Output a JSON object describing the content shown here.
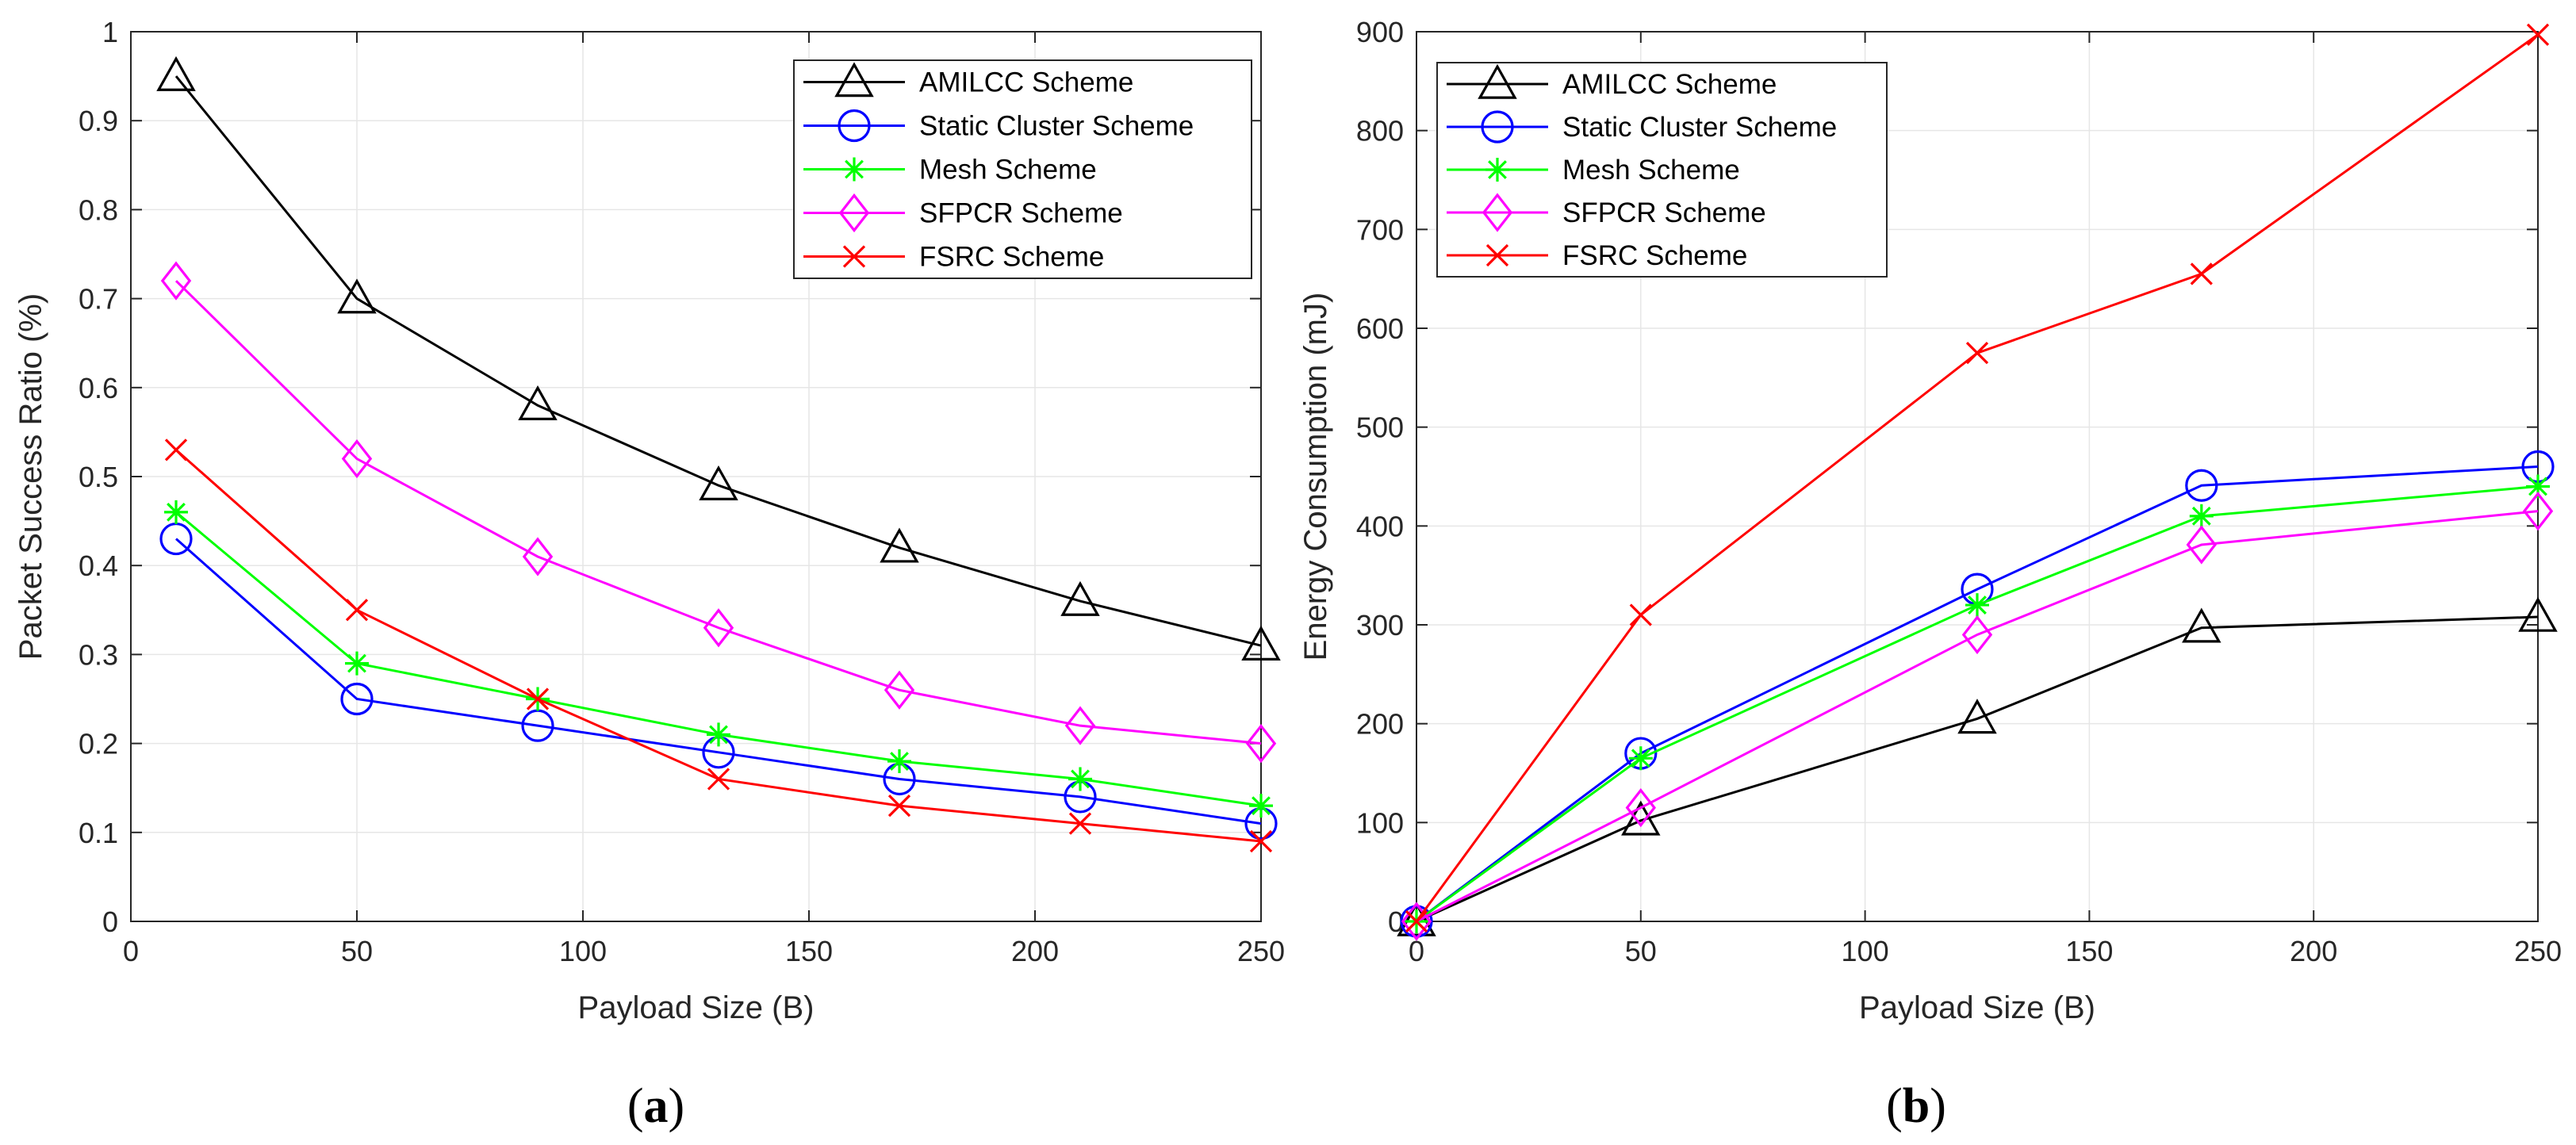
{
  "colors": {
    "amilcc": "#000000",
    "static": "#0000ff",
    "mesh": "#00ff00",
    "sfpcr": "#ff00ff",
    "fsrc": "#ff0000",
    "grid": "#e6e6e6",
    "axis": "#262626"
  },
  "chart_data": [
    {
      "type": "line",
      "caption": {
        "open": "(",
        "letter": "a",
        "close": ")"
      },
      "title": "",
      "xlabel": "Payload Size (B)",
      "ylabel": "Packet Success Ratio (%)",
      "xlim": [
        0,
        250
      ],
      "ylim": [
        0,
        1
      ],
      "xticks": [
        0,
        50,
        100,
        150,
        200,
        250
      ],
      "xtick_labels": [
        "0",
        "50",
        "100",
        "150",
        "200",
        "250"
      ],
      "yticks": [
        0,
        0.1,
        0.2,
        0.3,
        0.4,
        0.5,
        0.6,
        0.7,
        0.8,
        0.9,
        1
      ],
      "ytick_labels": [
        "0",
        "0.1",
        "0.2",
        "0.3",
        "0.4",
        "0.5",
        "0.6",
        "0.7",
        "0.8",
        "0.9",
        "1"
      ],
      "grid": true,
      "legend_position": "top-right",
      "x": [
        10,
        50,
        90,
        130,
        170,
        210,
        250
      ],
      "series": [
        {
          "name": "AMILCC Scheme",
          "color_key": "amilcc",
          "marker": "triangle",
          "values": [
            0.95,
            0.7,
            0.58,
            0.49,
            0.42,
            0.36,
            0.31
          ]
        },
        {
          "name": "Static Cluster Scheme",
          "color_key": "static",
          "marker": "circle",
          "values": [
            0.43,
            0.25,
            0.22,
            0.19,
            0.16,
            0.14,
            0.11
          ]
        },
        {
          "name": "Mesh Scheme",
          "color_key": "mesh",
          "marker": "asterisk",
          "values": [
            0.46,
            0.29,
            0.25,
            0.21,
            0.18,
            0.16,
            0.13
          ]
        },
        {
          "name": "SFPCR Scheme",
          "color_key": "sfpcr",
          "marker": "diamond",
          "values": [
            0.72,
            0.52,
            0.41,
            0.33,
            0.26,
            0.22,
            0.2
          ]
        },
        {
          "name": "FSRC Scheme",
          "color_key": "fsrc",
          "marker": "x",
          "values": [
            0.53,
            0.35,
            0.25,
            0.16,
            0.13,
            0.11,
            0.09
          ]
        }
      ]
    },
    {
      "type": "line",
      "caption": {
        "open": "(",
        "letter": "b",
        "close": ")"
      },
      "title": "",
      "xlabel": "Payload Size (B)",
      "ylabel": "Energy Consumption (mJ)",
      "xlim": [
        0,
        250
      ],
      "ylim": [
        0,
        900
      ],
      "xticks": [
        0,
        50,
        100,
        150,
        200,
        250
      ],
      "xtick_labels": [
        "0",
        "50",
        "100",
        "150",
        "200",
        "250"
      ],
      "yticks": [
        0,
        100,
        200,
        300,
        400,
        500,
        600,
        700,
        800,
        900
      ],
      "ytick_labels": [
        "0",
        "100",
        "200",
        "300",
        "400",
        "500",
        "600",
        "700",
        "800",
        "900"
      ],
      "grid": true,
      "legend_position": "top-left",
      "x": [
        0,
        50,
        125,
        175,
        250
      ],
      "series": [
        {
          "name": "AMILCC Scheme",
          "color_key": "amilcc",
          "marker": "triangle",
          "values": [
            0,
            102,
            205,
            297,
            308
          ]
        },
        {
          "name": "Static Cluster Scheme",
          "color_key": "static",
          "marker": "circle",
          "values": [
            0,
            170,
            336,
            441,
            460
          ]
        },
        {
          "name": "Mesh Scheme",
          "color_key": "mesh",
          "marker": "asterisk",
          "values": [
            0,
            165,
            320,
            410,
            440
          ]
        },
        {
          "name": "SFPCR Scheme",
          "color_key": "sfpcr",
          "marker": "diamond",
          "values": [
            0,
            115,
            290,
            381,
            415
          ]
        },
        {
          "name": "FSRC Scheme",
          "color_key": "fsrc",
          "marker": "x",
          "values": [
            0,
            310,
            575,
            655,
            897
          ]
        }
      ]
    }
  ]
}
